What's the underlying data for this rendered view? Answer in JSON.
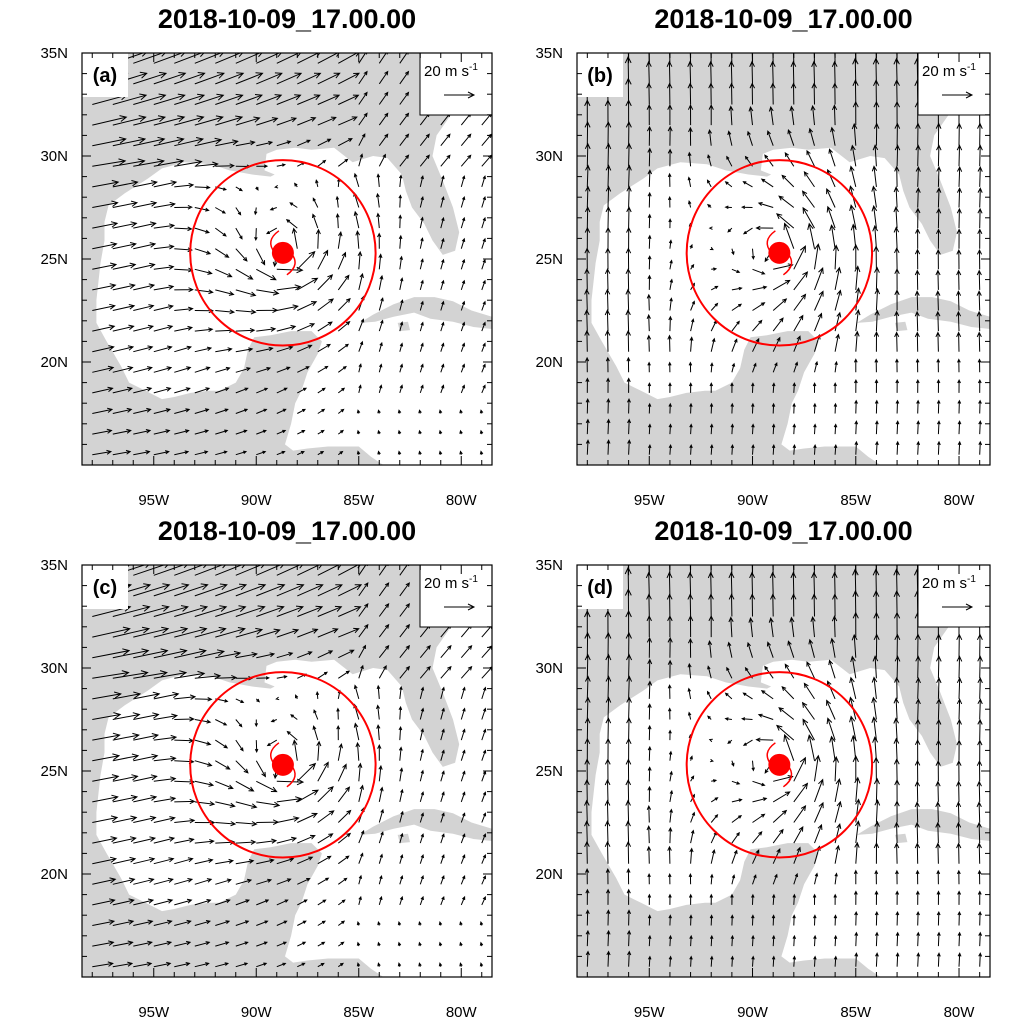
{
  "panels": [
    {
      "id": "a",
      "title": "2018-10-09_17.00.00",
      "label": "(a)",
      "style": "a"
    },
    {
      "id": "b",
      "title": "2018-10-09_17.00.00",
      "label": "(b)",
      "style": "b"
    },
    {
      "id": "c",
      "title": "2018-10-09_17.00.00",
      "label": "(c)",
      "style": "c"
    },
    {
      "id": "d",
      "title": "2018-10-09_17.00.00",
      "label": "(d)",
      "style": "d"
    }
  ],
  "lat_ticks": [
    {
      "value": 35,
      "label": "35N"
    },
    {
      "value": 30,
      "label": "30N"
    },
    {
      "value": 25,
      "label": "25N"
    },
    {
      "value": 20,
      "label": "20N"
    }
  ],
  "lon_ticks": [
    {
      "value": -95,
      "label": "95W"
    },
    {
      "value": -90,
      "label": "90W"
    },
    {
      "value": -85,
      "label": "85W"
    },
    {
      "value": -80,
      "label": "80W"
    }
  ],
  "map_extent": {
    "lon_min": -98.5,
    "lon_max": -78.5,
    "lat_min": 15,
    "lat_max": 35
  },
  "reference_vector": {
    "label": "20 m s",
    "superscript": "-1"
  },
  "storm": {
    "lon": -88.7,
    "lat": 25.3,
    "circle_radius_deg": 4.5
  },
  "colors": {
    "land": "#d3d3d3",
    "ocean": "#ffffff",
    "storm": "#ff0000",
    "vector": "#000000"
  }
}
